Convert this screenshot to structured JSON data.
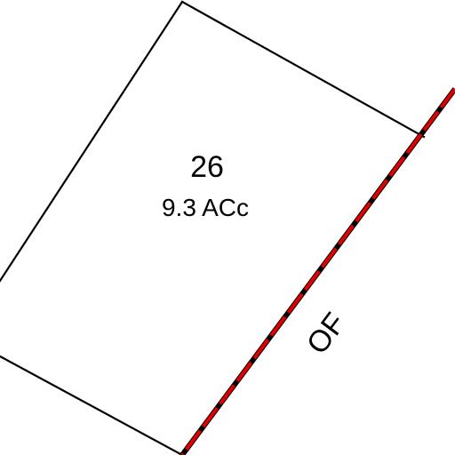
{
  "map": {
    "parcel": {
      "number": "26",
      "area": "9.3 ACc"
    },
    "road": {
      "label": "OF"
    },
    "colors": {
      "background": "#ffffff",
      "parcel_line": "#000000",
      "boundary_line": "#000000",
      "boundary_dash": "#e00000"
    }
  }
}
